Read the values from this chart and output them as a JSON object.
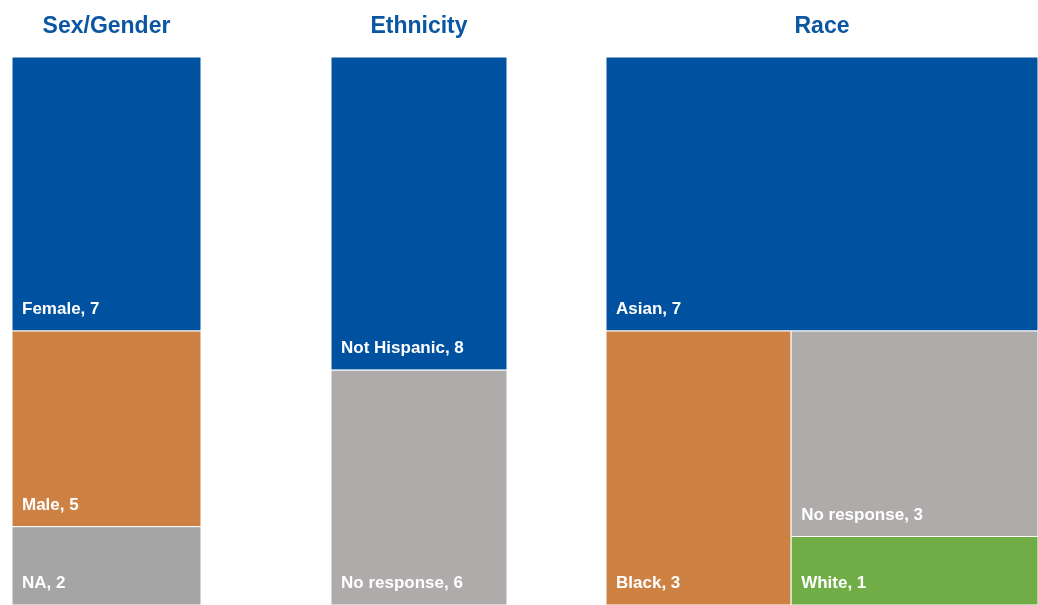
{
  "chart_data": [
    {
      "type": "other",
      "title": "Sex/Gender",
      "categories": [
        "Female",
        "Male",
        "NA"
      ],
      "values": [
        7,
        5,
        2
      ],
      "value_labels": [
        ", 7",
        ", 5",
        ", 2"
      ],
      "colors": [
        "#0052a0",
        "#cd8244",
        "#a5a5a5"
      ]
    },
    {
      "type": "other",
      "title": "Ethnicity",
      "categories": [
        "Not Hispanic",
        "No response"
      ],
      "values": [
        8,
        6
      ],
      "value_labels": [
        ", 8",
        ", 6"
      ],
      "colors": [
        "#0052a0",
        "#afabab"
      ]
    },
    {
      "type": "other",
      "title": "Race",
      "categories": [
        "Asian",
        "Black",
        "No response",
        "White"
      ],
      "values": [
        7,
        3,
        3,
        1
      ],
      "value_labels": [
        ", 7",
        ", 3",
        ", 3",
        ", 1"
      ],
      "colors": [
        "#0052a0",
        "#cd8244",
        "#afabab",
        "#70ad47"
      ]
    }
  ]
}
